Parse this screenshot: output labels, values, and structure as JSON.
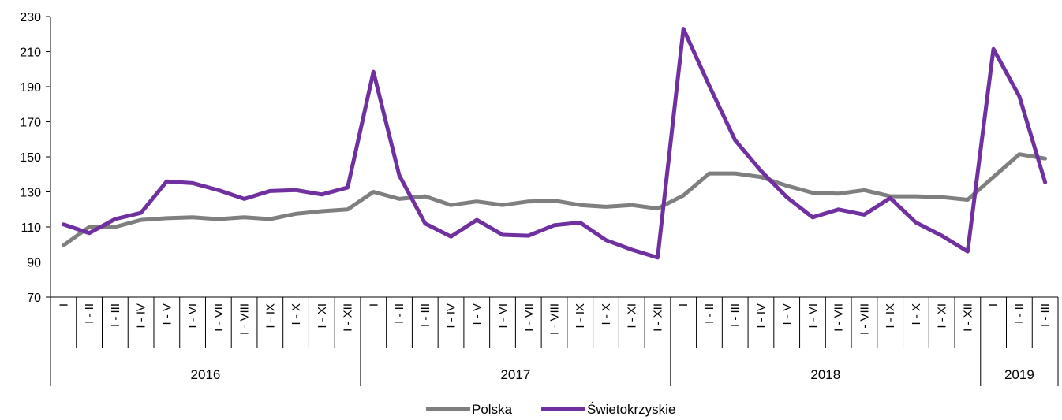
{
  "chart_data": {
    "type": "line",
    "title": "",
    "xlabel": "",
    "ylabel": "",
    "ylim": [
      70,
      230
    ],
    "yticks": [
      70,
      90,
      110,
      130,
      150,
      170,
      190,
      210,
      230
    ],
    "grid": false,
    "legend_position": "bottom",
    "years": [
      {
        "label": "2016",
        "count": 12
      },
      {
        "label": "2017",
        "count": 12
      },
      {
        "label": "2018",
        "count": 12
      },
      {
        "label": "2019",
        "count": 3
      }
    ],
    "categories": [
      "I",
      "I - II",
      "I - III",
      "I - IV",
      "I - V",
      "I - VI",
      "I - VII",
      "I - VIII",
      "I - IX",
      "I - X",
      "I - XI",
      "I - XII",
      "I",
      "I - II",
      "I - III",
      "I - IV",
      "I - V",
      "I - VI",
      "I - VII",
      "I - VIII",
      "I - IX",
      "I - X",
      "I - XI",
      "I - XII",
      "I",
      "I - II",
      "I - III",
      "I - IV",
      "I - V",
      "I - VI",
      "I - VII",
      "I - VIII",
      "I - IX",
      "I - X",
      "I - XI",
      "I - XII",
      "I",
      "I - II",
      "I - III"
    ],
    "series": [
      {
        "name": "Polska",
        "color": "#7f7f7f",
        "values": [
          99.5,
          110,
          110,
          114,
          115,
          115.5,
          114.5,
          115.5,
          114.5,
          117.5,
          119,
          120,
          130,
          126,
          127.5,
          122.5,
          124.5,
          122.5,
          124.5,
          125,
          122.5,
          121.5,
          122.5,
          120.5,
          128,
          140.5,
          140.5,
          138.5,
          133.5,
          129.5,
          129,
          131,
          127.5,
          127.5,
          127,
          125.5,
          138.5,
          151.5,
          149
        ]
      },
      {
        "name": "Świetokrzyskie",
        "color": "#7030a0",
        "values": [
          111.5,
          106.5,
          114.5,
          118,
          136,
          135,
          131,
          126,
          130.5,
          131,
          128.5,
          132.5,
          198.5,
          139.5,
          112,
          104.5,
          114,
          105.5,
          105,
          111,
          112.5,
          102.5,
          97,
          92.5,
          223,
          190.5,
          159.5,
          142,
          127,
          115.5,
          120,
          117,
          126.5,
          112.5,
          105,
          96,
          211.5,
          184.5,
          135.5
        ]
      }
    ]
  }
}
